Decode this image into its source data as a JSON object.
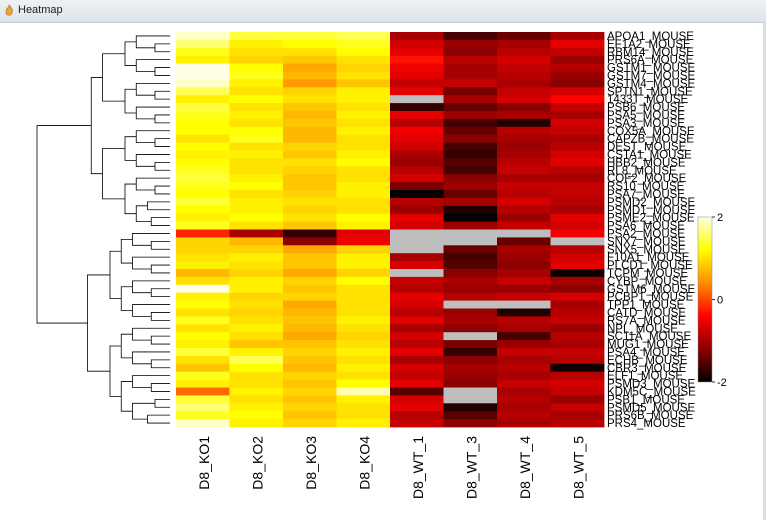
{
  "window": {
    "title": "Heatmap"
  },
  "chart_data": {
    "type": "heatmap",
    "title": "",
    "columns": [
      "D8_KO1",
      "D8_KO2",
      "D8_KO3",
      "D8_KO4",
      "D8_WT_1",
      "D8_WT_3",
      "D8_WT_4",
      "D8_WT_5"
    ],
    "rows": [
      "APOA1_MOUSE",
      "EF1A2_MOUSE",
      "RBM14_MOUSE",
      "PRS6A_MOUSE",
      "GSTM1_MOUSE",
      "GSTM7_MOUSE",
      "GSTM4_MOUSE",
      "SPTN1_MOUSE",
      "1433T_MOUSE",
      "PSB6_MOUSE",
      "PSA5_MOUSE",
      "PSA3_MOUSE",
      "COX5A_MOUSE",
      "CAPZB_MOUSE",
      "DEST_MOUSE",
      "CSTA1_MOUSE",
      "HBB2_MOUSE",
      "RL8_MOUSE",
      "COF2_MOUSE",
      "RS10_MOUSE",
      "PSA7_MOUSE",
      "PSMD2_MOUSE",
      "PSMD1_MOUSE",
      "PSME2_MOUSE",
      "PSA6_MOUSE",
      "PSA2_MOUSE",
      "SNX7_MOUSE",
      "SNX5_MOUSE",
      "F10A1_MOUSE",
      "PLCD1_MOUSE",
      "TCPM_MOUSE",
      "CYBP_MOUSE",
      "GSTM6_MOUSE",
      "PCBP1_MOUSE",
      "TPP1_MOUSE",
      "CATD_MOUSE",
      "RS7A_MOUSE",
      "NPL_MOUSE",
      "SC11A_MOUSE",
      "MUG1_MOUSE",
      "PSA4_MOUSE",
      "ECHB_MOUSE",
      "CBR3_MOUSE",
      "ELF1_MOUSE",
      "PSMD3_MOUSE",
      "KDM5C_MOUSE",
      "PSB1_MOUSE",
      "PSMD5_MOUSE",
      "PRS6B_MOUSE",
      "PRS4_MOUSE"
    ],
    "values": [
      [
        1.9,
        1.4,
        1.4,
        1.5,
        -1.0,
        -1.6,
        -1.4,
        -1.0
      ],
      [
        1.6,
        1.1,
        1.2,
        1.3,
        -0.7,
        -1.1,
        -1.0,
        -0.6
      ],
      [
        1.3,
        1.0,
        1.0,
        1.2,
        -0.6,
        -1.2,
        -0.9,
        -0.8
      ],
      [
        1.1,
        0.9,
        0.8,
        1.0,
        -0.3,
        -0.9,
        -0.7,
        -1.1
      ],
      [
        2.0,
        1.2,
        0.6,
        0.9,
        -0.5,
        -1.0,
        -0.8,
        -0.9
      ],
      [
        2.1,
        1.3,
        0.7,
        1.0,
        -0.6,
        -1.0,
        -0.9,
        -1.1
      ],
      [
        1.9,
        1.1,
        0.5,
        0.8,
        -0.8,
        -0.8,
        -1.0,
        -1.2
      ],
      [
        1.5,
        1.0,
        0.9,
        1.1,
        -0.6,
        -1.3,
        -0.8,
        -0.7
      ],
      [
        1.1,
        1.2,
        1.0,
        1.1,
        null,
        -1.0,
        -0.7,
        -0.4
      ],
      [
        1.4,
        1.0,
        0.8,
        1.0,
        -1.7,
        -1.4,
        -1.2,
        -0.8
      ],
      [
        1.3,
        1.1,
        0.7,
        1.1,
        -0.6,
        -1.1,
        -1.0,
        -1.0
      ],
      [
        1.2,
        1.0,
        0.8,
        1.0,
        -0.9,
        -1.6,
        -1.8,
        -0.7
      ],
      [
        1.2,
        1.2,
        0.7,
        1.1,
        -0.5,
        -1.4,
        -0.9,
        -0.8
      ],
      [
        1.0,
        1.3,
        0.7,
        1.0,
        -0.6,
        -1.2,
        -1.0,
        -1.0
      ],
      [
        1.2,
        1.0,
        0.9,
        1.0,
        -0.7,
        -1.6,
        -1.1,
        -0.9
      ],
      [
        1.1,
        1.1,
        0.8,
        1.1,
        -1.0,
        -1.7,
        -1.0,
        -0.7
      ],
      [
        1.2,
        1.0,
        1.0,
        1.2,
        -1.1,
        -1.5,
        -0.9,
        -0.6
      ],
      [
        1.3,
        1.0,
        0.9,
        1.0,
        -0.9,
        -1.6,
        -0.8,
        -0.9
      ],
      [
        1.4,
        1.1,
        0.8,
        1.0,
        -0.7,
        -1.2,
        -1.0,
        -1.0
      ],
      [
        1.3,
        1.2,
        0.8,
        1.1,
        -1.3,
        -1.1,
        -0.8,
        -0.8
      ],
      [
        1.2,
        1.0,
        0.9,
        1.1,
        -2.0,
        -1.4,
        -0.9,
        -0.8
      ],
      [
        1.4,
        1.1,
        1.0,
        1.0,
        -0.9,
        -1.0,
        -0.7,
        -0.9
      ],
      [
        1.2,
        1.1,
        0.9,
        1.0,
        -1.1,
        -1.8,
        -0.9,
        -1.0
      ],
      [
        1.1,
        1.2,
        1.0,
        1.2,
        -0.6,
        -2.0,
        -1.1,
        -0.6
      ],
      [
        1.3,
        1.0,
        0.8,
        1.1,
        -0.7,
        -1.1,
        -0.8,
        -0.7
      ],
      [
        -0.2,
        -1.0,
        -1.7,
        -0.6,
        null,
        null,
        null,
        -0.5
      ],
      [
        0.9,
        0.7,
        -1.2,
        -0.5,
        null,
        null,
        -1.4,
        null
      ],
      [
        0.9,
        0.9,
        0.6,
        0.9,
        null,
        -1.4,
        -1.0,
        -0.9
      ],
      [
        1.0,
        1.1,
        0.8,
        1.1,
        -1.0,
        -1.6,
        -1.1,
        -0.7
      ],
      [
        1.1,
        1.0,
        0.8,
        1.1,
        -0.7,
        -1.5,
        -1.2,
        -0.6
      ],
      [
        0.7,
        0.9,
        0.6,
        0.9,
        null,
        -1.2,
        -1.0,
        -1.9
      ],
      [
        1.0,
        1.1,
        0.9,
        1.2,
        -0.8,
        -1.0,
        -0.8,
        -1.0
      ],
      [
        2.0,
        1.1,
        0.8,
        1.0,
        -0.9,
        -1.1,
        -1.1,
        -1.2
      ],
      [
        1.1,
        0.9,
        0.9,
        1.0,
        -0.6,
        -0.9,
        -0.8,
        -0.7
      ],
      [
        1.2,
        1.0,
        0.6,
        1.0,
        -0.7,
        null,
        null,
        -1.0
      ],
      [
        1.0,
        0.9,
        0.7,
        1.0,
        -0.9,
        -1.1,
        -1.8,
        -0.9
      ],
      [
        1.3,
        1.0,
        0.8,
        1.1,
        -0.6,
        -1.0,
        -0.9,
        -0.8
      ],
      [
        1.0,
        1.1,
        0.7,
        1.0,
        -1.0,
        -1.2,
        -1.0,
        -1.1
      ],
      [
        1.2,
        1.0,
        0.6,
        0.9,
        -0.7,
        null,
        -1.6,
        -0.9
      ],
      [
        1.1,
        0.8,
        0.8,
        1.0,
        -0.9,
        -1.3,
        -1.1,
        -1.0
      ],
      [
        1.4,
        1.1,
        0.9,
        1.1,
        -0.6,
        -1.7,
        -0.8,
        -0.8
      ],
      [
        1.0,
        1.5,
        0.8,
        1.0,
        -1.0,
        -1.2,
        -1.0,
        -0.9
      ],
      [
        0.8,
        1.2,
        0.7,
        1.1,
        -0.7,
        -1.0,
        -0.9,
        -1.9
      ],
      [
        1.3,
        1.0,
        0.9,
        1.0,
        -0.8,
        -1.1,
        -1.0,
        -0.9
      ],
      [
        1.1,
        1.0,
        0.8,
        1.2,
        -0.6,
        -1.2,
        -0.8,
        -0.7
      ],
      [
        0.2,
        1.1,
        0.9,
        1.8,
        -1.5,
        null,
        -1.0,
        -0.8
      ],
      [
        1.4,
        1.0,
        0.8,
        1.1,
        -0.7,
        null,
        -0.9,
        -1.1
      ],
      [
        1.6,
        1.1,
        0.9,
        1.0,
        -0.6,
        -1.8,
        -1.0,
        -0.8
      ],
      [
        1.3,
        1.2,
        0.8,
        1.0,
        -0.9,
        -1.5,
        -0.9,
        -1.0
      ],
      [
        1.9,
        1.1,
        0.9,
        1.1,
        -0.8,
        -1.2,
        -1.0,
        -0.9
      ]
    ],
    "color_scale": {
      "min": -2,
      "max": 2,
      "ticks": [
        2,
        0,
        -2
      ],
      "missing_color": "#bebebe",
      "colors": [
        "#000000",
        "#8b0000",
        "#ff0000",
        "#ff8c00",
        "#ffff00",
        "#ffffe6"
      ]
    },
    "dendrogram": {
      "side": "left",
      "groups": 2
    },
    "legend": "right"
  }
}
